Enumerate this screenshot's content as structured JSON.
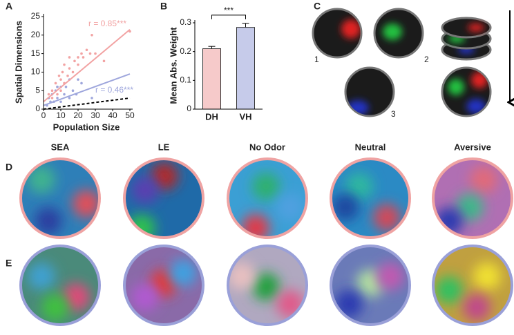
{
  "panel_labels": [
    "A",
    "B",
    "C",
    "D",
    "E"
  ],
  "chart_data": [
    {
      "type": "scatter",
      "xlabel": "Population Size",
      "ylabel": "Spatial Dimensions",
      "xlim": [
        0,
        50
      ],
      "ylim": [
        0,
        25
      ],
      "xticks": [
        0,
        10,
        20,
        30,
        40,
        50
      ],
      "yticks": [
        0,
        5,
        10,
        15,
        20,
        25
      ],
      "series": [
        {
          "color": "#f2a3a3",
          "x": [
            3,
            5,
            5,
            7,
            8,
            8,
            9,
            10,
            10,
            11,
            12,
            12,
            14,
            15,
            15,
            17,
            18,
            20,
            20,
            22,
            23,
            25,
            27,
            28,
            30,
            35,
            50
          ],
          "values": [
            4,
            3,
            5,
            7,
            4,
            6,
            9,
            5,
            8,
            10,
            7,
            12,
            9,
            11,
            14,
            10,
            13,
            12,
            14,
            15,
            14,
            16,
            15,
            20,
            15,
            13,
            21
          ]
        },
        {
          "color": "#9ea6dc",
          "x": [
            2,
            3,
            4,
            5,
            6,
            7,
            8,
            8,
            10,
            10,
            12,
            13,
            15,
            15,
            17,
            19,
            20,
            22,
            28
          ],
          "values": [
            1,
            3,
            2,
            4,
            2,
            5,
            3,
            6,
            2,
            6,
            4,
            6,
            3,
            8,
            5,
            4,
            8,
            7,
            3
          ]
        }
      ],
      "fits": [
        {
          "color": "#f2a3a3",
          "style": "solid",
          "x": [
            0,
            50
          ],
          "values": [
            2,
            21.5
          ]
        },
        {
          "color": "#9ea6dc",
          "style": "solid",
          "x": [
            0,
            50
          ],
          "values": [
            1,
            9.5
          ]
        },
        {
          "color": "#000000",
          "style": "dashed",
          "x": [
            0,
            50
          ],
          "values": [
            0,
            3
          ]
        }
      ],
      "annotations": [
        {
          "text": "r = 0.85***",
          "color": "#f2a3a3"
        },
        {
          "text": "r = 0.46***",
          "color": "#9ea6dc"
        }
      ]
    },
    {
      "type": "bar",
      "ylabel": "Mean Abs. Weight",
      "categories": [
        "DH",
        "VH"
      ],
      "values": [
        0.21,
        0.284
      ],
      "errors": [
        0.008,
        0.014
      ],
      "colors": [
        "#f6caca",
        "#c6cbea"
      ],
      "ylim": [
        0,
        0.3
      ],
      "yticks": [
        0,
        0.1,
        0.2,
        0.3
      ],
      "significance": "***"
    }
  ],
  "panel_c": {
    "labels": [
      "1",
      "2",
      "3"
    ]
  },
  "panel_de": {
    "columns": [
      "SEA",
      "LE",
      "No Odor",
      "Neutral",
      "Aversive"
    ]
  }
}
